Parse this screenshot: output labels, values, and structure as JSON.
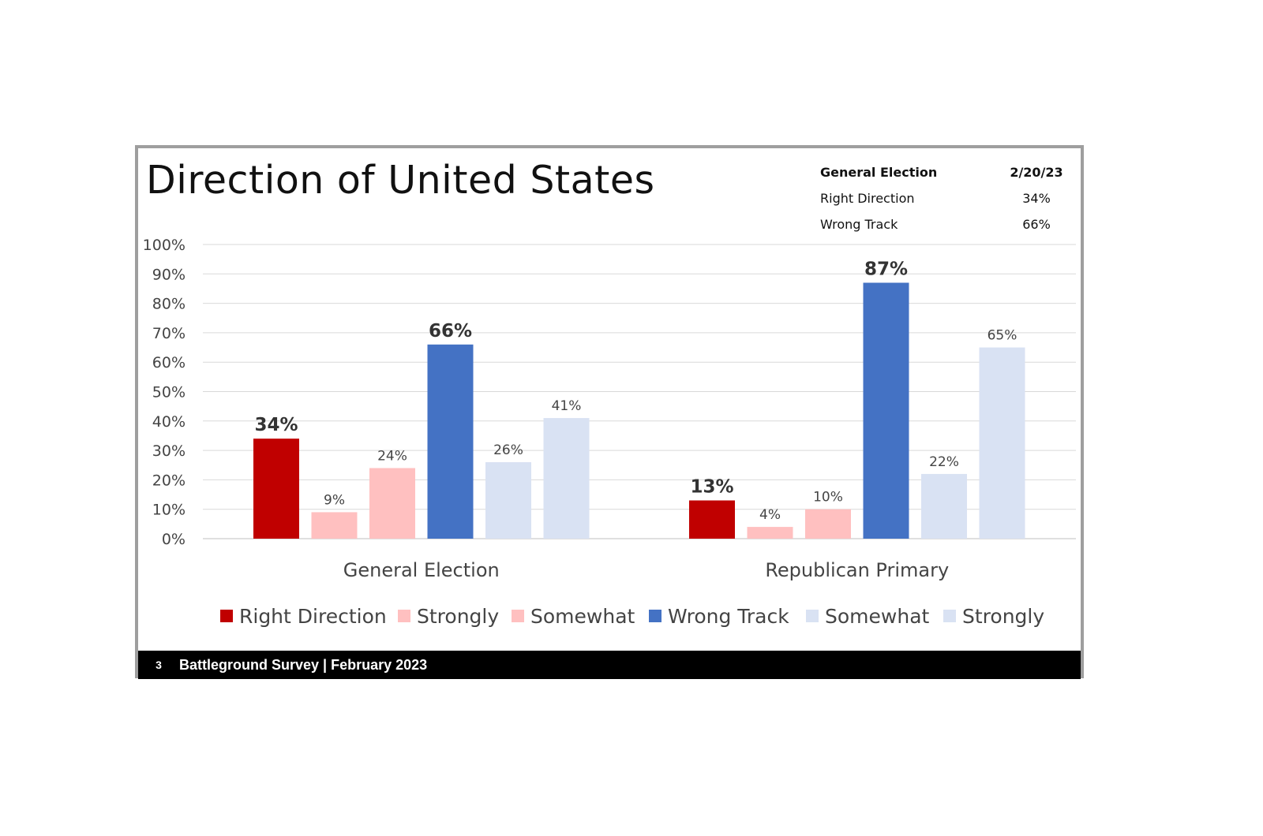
{
  "slide": {
    "title": "Direction of United States",
    "summary": {
      "header_label": "General Election",
      "header_date": "2/20/23",
      "rows": [
        {
          "label": "Right Direction",
          "value": "34%"
        },
        {
          "label": "Wrong Track",
          "value": "66%"
        }
      ]
    },
    "footer": {
      "page_number": "3",
      "text": "Battleground Survey | February 2023"
    }
  },
  "chart_data": {
    "type": "bar",
    "title": "Direction of United States",
    "categories": [
      "General Election",
      "Republican Primary"
    ],
    "ylim": [
      0,
      100
    ],
    "yticks": [
      "0%",
      "10%",
      "20%",
      "30%",
      "40%",
      "50%",
      "60%",
      "70%",
      "80%",
      "90%",
      "100%"
    ],
    "grid": true,
    "legend_position": "bottom",
    "series": [
      {
        "name": "Right Direction",
        "color": "#c00000",
        "values": [
          34,
          13
        ],
        "labels": [
          "34%",
          "13%"
        ],
        "emphasis": true
      },
      {
        "name": "Strongly",
        "color": "#ffc0c0",
        "values": [
          9,
          4
        ],
        "labels": [
          "9%",
          "4%"
        ],
        "emphasis": false
      },
      {
        "name": "Somewhat",
        "color": "#ffc0c0",
        "values": [
          24,
          10
        ],
        "labels": [
          "24%",
          "10%"
        ],
        "emphasis": false
      },
      {
        "name": "Wrong Track",
        "color": "#4472c4",
        "values": [
          66,
          87
        ],
        "labels": [
          "66%",
          "87%"
        ],
        "emphasis": true
      },
      {
        "name": "Somewhat",
        "color": "#d9e2f3",
        "values": [
          26,
          22
        ],
        "labels": [
          "26%",
          "22%"
        ],
        "emphasis": false
      },
      {
        "name": "Strongly",
        "color": "#d9e2f3",
        "values": [
          41,
          65
        ],
        "labels": [
          "41%",
          "65%"
        ],
        "emphasis": false
      }
    ]
  }
}
